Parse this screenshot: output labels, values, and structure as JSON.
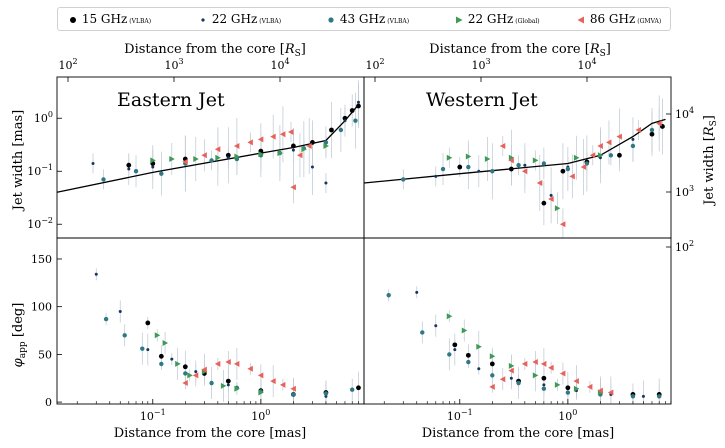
{
  "colors": {
    "s15": "#000000",
    "s22": "#17355e",
    "s43": "#2f7884",
    "s22g": "#3f9a55",
    "s86": "#e8625c",
    "errbar": "#b9c6d2"
  },
  "legend": [
    {
      "name": "15 GHz",
      "sub": "(VLBA)",
      "color_key": "s15",
      "marker": "circle-lg"
    },
    {
      "name": "22 GHz",
      "sub": "(VLBA)",
      "color_key": "s22",
      "marker": "circle-sm"
    },
    {
      "name": "43 GHz",
      "sub": "(VLBA)",
      "color_key": "s43",
      "marker": "circle-md"
    },
    {
      "name": "22 GHz",
      "sub": "(Global)",
      "color_key": "s22g",
      "marker": "tri-right"
    },
    {
      "name": "86 GHz",
      "sub": "(GMVA)",
      "color_key": "s86",
      "marker": "tri-left"
    }
  ],
  "chart_data": [
    {
      "type": "scatter",
      "panel": "Eastern Jet",
      "title": "Eastern Jet",
      "xlabel": "",
      "ylabel": "Jet width [mas]",
      "x_log": true,
      "y_log": true,
      "xlim": [
        0.013,
        9.0
      ],
      "ylim": [
        0.0055,
        6.0
      ],
      "top_axis": {
        "label": "Distance from the core [RS]",
        "ticks": [
          "10^2",
          "10^3",
          "10^4"
        ]
      },
      "y_ticks": [
        "10^-2",
        "10^-1",
        "10^0"
      ],
      "fit_line": [
        [
          0.013,
          0.04
        ],
        [
          0.1,
          0.095
        ],
        [
          1.0,
          0.22
        ],
        [
          2.0,
          0.28
        ],
        [
          4.0,
          0.38
        ],
        [
          6.0,
          0.9
        ],
        [
          8.0,
          1.8
        ]
      ],
      "series": [
        {
          "name": "15 GHz (VLBA)",
          "x": [
            0.06,
            0.1,
            0.2,
            0.5,
            1.0,
            2.0,
            3.0,
            4.5,
            6.0,
            7.0,
            8.0
          ],
          "y": [
            0.13,
            0.14,
            0.17,
            0.2,
            0.24,
            0.3,
            0.35,
            0.6,
            1.0,
            1.4,
            1.7
          ]
        },
        {
          "name": "22 GHz (VLBA)",
          "x": [
            0.028,
            0.06,
            0.1,
            0.2,
            0.5,
            1.0,
            2.0,
            3.0,
            4.0,
            6.0,
            8.0
          ],
          "y": [
            0.14,
            0.11,
            0.12,
            0.14,
            0.18,
            0.2,
            0.25,
            0.12,
            0.06,
            0.9,
            2.0
          ]
        },
        {
          "name": "43 GHz (VLBA)",
          "x": [
            0.035,
            0.07,
            0.12,
            0.2,
            0.35,
            0.6,
            1.0,
            1.5,
            2.5,
            4.0,
            5.5,
            7.5
          ],
          "y": [
            0.07,
            0.1,
            0.09,
            0.14,
            0.16,
            0.17,
            0.2,
            0.22,
            0.27,
            0.35,
            0.6,
            0.9
          ]
        },
        {
          "name": "22 GHz (Global)",
          "x": [
            0.1,
            0.15,
            0.25,
            0.4,
            0.6,
            1.0,
            1.5,
            2.5,
            4.0
          ],
          "y": [
            0.16,
            0.17,
            0.17,
            0.18,
            0.19,
            0.21,
            0.22,
            0.26,
            0.3
          ]
        },
        {
          "name": "86 GHz (GMVA)",
          "x": [
            0.2,
            0.3,
            0.4,
            0.6,
            0.8,
            1.0,
            1.3,
            1.6,
            1.9,
            2.0,
            2.3,
            2.8
          ],
          "y": [
            0.15,
            0.2,
            0.26,
            0.3,
            0.35,
            0.4,
            0.45,
            0.5,
            0.55,
            0.05,
            0.2,
            0.3
          ]
        }
      ]
    },
    {
      "type": "scatter",
      "panel": "Western Jet",
      "title": "Western Jet",
      "xlabel": "",
      "ylabel": "Jet width [RS]",
      "x_log": true,
      "y_log": true,
      "xlim": [
        0.013,
        9.0
      ],
      "ylim": [
        0.0055,
        6.0
      ],
      "top_axis": {
        "label": "Distance from the core [RS]",
        "ticks": [
          "10^2",
          "10^3",
          "10^4"
        ]
      },
      "y2_ticks": [
        "10^2",
        "10^3",
        "10^4"
      ],
      "fit_line": [
        [
          0.013,
          0.06
        ],
        [
          0.1,
          0.09
        ],
        [
          1.0,
          0.14
        ],
        [
          2.0,
          0.2
        ],
        [
          4.0,
          0.45
        ],
        [
          6.0,
          0.8
        ],
        [
          8.0,
          0.95
        ]
      ],
      "series": [
        {
          "name": "15 GHz (VLBA)",
          "x": [
            0.1,
            0.3,
            0.6,
            0.9,
            1.5,
            3.0,
            6.0,
            7.5
          ],
          "y": [
            0.12,
            0.11,
            0.025,
            0.1,
            0.15,
            0.2,
            0.5,
            0.7
          ]
        },
        {
          "name": "22 GHz (VLBA)",
          "x": [
            0.06,
            0.15,
            0.4,
            0.7,
            1.0,
            2.0,
            4.0,
            7.0
          ],
          "y": [
            0.08,
            0.1,
            0.13,
            0.035,
            0.12,
            0.18,
            0.4,
            0.8
          ]
        },
        {
          "name": "43 GHz (VLBA)",
          "x": [
            0.03,
            0.07,
            0.12,
            0.2,
            0.35,
            0.6,
            1.0,
            1.5,
            2.5,
            4.0,
            6.0
          ],
          "y": [
            0.07,
            0.11,
            0.12,
            0.1,
            0.13,
            0.14,
            0.11,
            0.14,
            0.2,
            0.3,
            0.6
          ]
        },
        {
          "name": "22 GHz (Global)",
          "x": [
            0.08,
            0.12,
            0.18,
            0.3,
            0.5,
            0.8,
            1.2,
            2.0
          ],
          "y": [
            0.18,
            0.19,
            0.17,
            0.18,
            0.16,
            0.02,
            0.18,
            0.2
          ]
        },
        {
          "name": "86 GHz (GMVA)",
          "x": [
            0.25,
            0.3,
            0.4,
            0.55,
            0.7,
            0.9,
            1.1,
            1.4,
            1.7,
            2.0,
            2.4,
            3.0,
            4.5,
            7.0
          ],
          "y": [
            0.3,
            0.16,
            0.1,
            0.06,
            0.03,
            0.01,
            0.08,
            0.12,
            0.2,
            0.3,
            0.35,
            0.45,
            0.6,
            0.8
          ]
        }
      ]
    },
    {
      "type": "scatter",
      "panel": "Eastern Jet phi",
      "title": "",
      "xlabel": "Distance from the core [mas]",
      "ylabel": "φapp [deg]",
      "x_log": true,
      "y_log": false,
      "xlim": [
        0.013,
        9.0
      ],
      "ylim": [
        -2,
        172
      ],
      "y_ticks": [
        0,
        50,
        100,
        150
      ],
      "series": [
        {
          "name": "15 GHz (VLBA)",
          "x": [
            0.09,
            0.12,
            0.2,
            0.3,
            0.5,
            1.0,
            2.0,
            4.0,
            8.0
          ],
          "y": [
            83,
            48,
            37,
            30,
            22,
            12,
            8,
            10,
            15
          ]
        },
        {
          "name": "22 GHz (VLBA)",
          "x": [
            0.03,
            0.05,
            0.09,
            0.15,
            0.25,
            0.5,
            1.0,
            2.0,
            4.0
          ],
          "y": [
            134,
            95,
            55,
            45,
            32,
            18,
            12,
            8,
            6
          ]
        },
        {
          "name": "43 GHz (VLBA)",
          "x": [
            0.037,
            0.055,
            0.08,
            0.12,
            0.2,
            0.35,
            0.6,
            1.0,
            2.0,
            4.0,
            7.0
          ],
          "y": [
            87,
            70,
            56,
            40,
            30,
            20,
            15,
            11,
            8,
            9,
            13
          ]
        },
        {
          "name": "22 GHz (Global)",
          "x": [
            0.11,
            0.13,
            0.17,
            0.22,
            0.3,
            0.45,
            0.6,
            1.0
          ],
          "y": [
            70,
            62,
            40,
            28,
            32,
            17,
            14,
            10
          ]
        },
        {
          "name": "86 GHz (GMVA)",
          "x": [
            0.2,
            0.25,
            0.3,
            0.4,
            0.5,
            0.6,
            0.8,
            1.0,
            1.3,
            1.6,
            2.0
          ],
          "y": [
            20,
            28,
            34,
            40,
            42,
            40,
            35,
            28,
            22,
            18,
            14
          ]
        }
      ]
    },
    {
      "type": "scatter",
      "panel": "Western Jet phi",
      "title": "",
      "xlabel": "Distance from the core [mas]",
      "ylabel": "",
      "x_log": true,
      "y_log": false,
      "xlim": [
        0.013,
        9.0
      ],
      "ylim": [
        -2,
        172
      ],
      "series": [
        {
          "name": "15 GHz (VLBA)",
          "x": [
            0.09,
            0.12,
            0.2,
            0.35,
            0.6,
            1.0,
            2.0,
            4.0,
            7.0
          ],
          "y": [
            60,
            49,
            40,
            22,
            25,
            15,
            10,
            8,
            8
          ]
        },
        {
          "name": "22 GHz (VLBA)",
          "x": [
            0.04,
            0.06,
            0.09,
            0.15,
            0.3,
            0.6,
            1.2,
            2.5,
            5.0
          ],
          "y": [
            115,
            80,
            55,
            35,
            25,
            18,
            12,
            8,
            6
          ]
        },
        {
          "name": "43 GHz (VLBA)",
          "x": [
            0.022,
            0.045,
            0.08,
            0.12,
            0.2,
            0.35,
            0.6,
            1.0,
            2.0,
            4.0,
            7.0
          ],
          "y": [
            112,
            73,
            50,
            42,
            28,
            20,
            14,
            10,
            8,
            6,
            6
          ]
        },
        {
          "name": "22 GHz (Global)",
          "x": [
            0.08,
            0.11,
            0.15,
            0.2,
            0.3,
            0.5,
            0.8,
            1.2,
            2.0
          ],
          "y": [
            90,
            75,
            58,
            48,
            38,
            28,
            18,
            14,
            10
          ]
        },
        {
          "name": "86 GHz (GMVA)",
          "x": [
            0.2,
            0.25,
            0.3,
            0.4,
            0.5,
            0.6,
            0.7,
            0.9,
            1.2,
            1.6,
            2.0,
            2.5
          ],
          "y": [
            16,
            24,
            33,
            40,
            42,
            40,
            36,
            30,
            22,
            16,
            12,
            10
          ]
        }
      ]
    }
  ],
  "labels": {
    "top_axis_left": "Distance from the core [",
    "top_axis_right": "Distance from the core [",
    "rs_sym": "R",
    "rs_sub": "S",
    "close_bracket": "]",
    "ylabel_top_left": "Jet width [mas]",
    "ylabel_top_right": "Jet width [",
    "ylabel_bottom_left_phi": "φ",
    "ylabel_bottom_left_app": "app",
    "ylabel_bottom_left_unit": " [deg]",
    "xlabel_bottom_left": "Distance from the core [mas]",
    "xlabel_bottom_right": "Distance from the core [mas]",
    "title_east": "Eastern Jet",
    "title_west": "Western Jet",
    "tick_10": "10",
    "tick_top_exp": [
      "2",
      "3",
      "4"
    ],
    "tick_bottom_exp": [
      "−1",
      "0"
    ],
    "tick_left_exp": [
      "−2",
      "−1",
      "0"
    ],
    "tick_right_exp": [
      "2",
      "3",
      "4"
    ],
    "tick_phi": [
      "0",
      "50",
      "100",
      "150"
    ]
  }
}
